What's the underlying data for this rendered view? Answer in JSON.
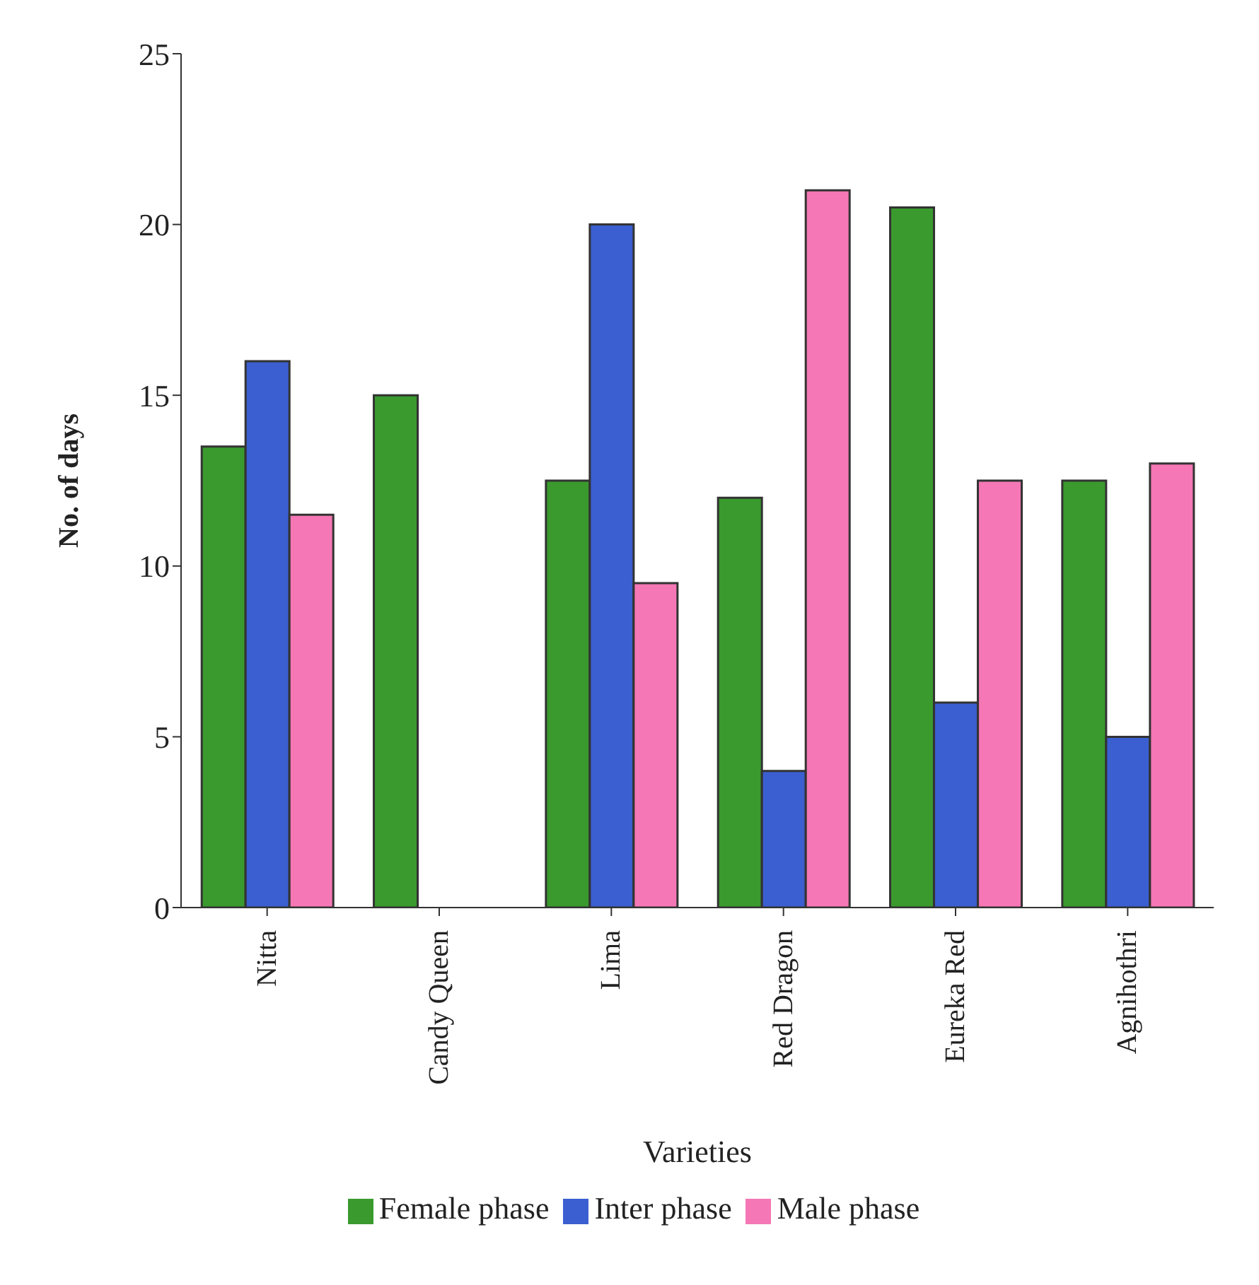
{
  "chart_data": {
    "type": "bar",
    "xlabel": "Varieties",
    "ylabel": "No. of days",
    "categories": [
      "Nitta",
      "Candy Queen",
      "Lima",
      "Red Dragon",
      "Eureka Red",
      "Agnihothri"
    ],
    "series": [
      {
        "name": "Female phase",
        "color": "#3a9a2e",
        "values": [
          13.5,
          15,
          12.5,
          12,
          20.5,
          12.5
        ]
      },
      {
        "name": "Inter phase",
        "color": "#3b5fd0",
        "values": [
          16,
          null,
          20,
          4,
          6,
          5
        ]
      },
      {
        "name": "Male phase",
        "color": "#f577b5",
        "values": [
          11.5,
          null,
          9.5,
          21,
          12.5,
          13
        ]
      }
    ],
    "ylim": [
      0,
      25
    ],
    "yticks": [
      0,
      5,
      10,
      15,
      20,
      25
    ],
    "grid": false,
    "legend": "bottom"
  }
}
